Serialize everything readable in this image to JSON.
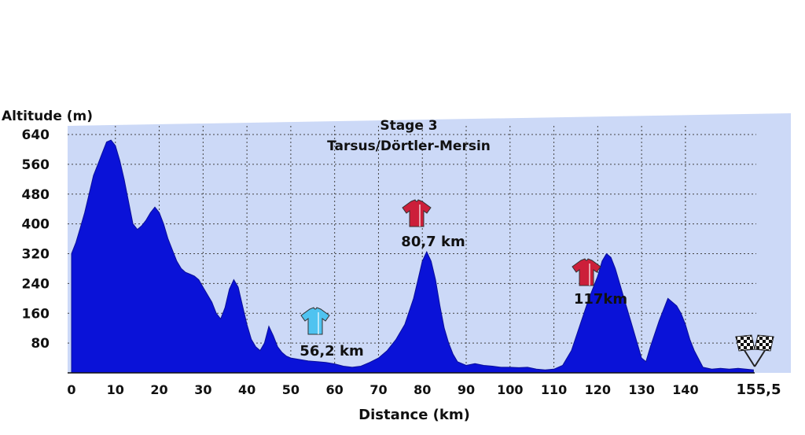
{
  "chart_data": {
    "type": "area",
    "title": "Stage 3",
    "subtitle": "Tarsus/Dörtler-Mersin",
    "ylabel": "Altitude (m)",
    "xlabel": "Distance (km)",
    "ylim": [
      0,
      640
    ],
    "xlim": [
      0,
      155.5
    ],
    "y_ticks": [
      "640",
      "560",
      "480",
      "400",
      "320",
      "240",
      "160",
      "80"
    ],
    "y_tick_values": [
      640,
      560,
      480,
      400,
      320,
      240,
      160,
      80
    ],
    "x_ticks": [
      "0",
      "10",
      "20",
      "30",
      "40",
      "50",
      "60",
      "70",
      "80",
      "90",
      "100",
      "110",
      "120",
      "130",
      "140"
    ],
    "x_tick_values": [
      0,
      10,
      20,
      30,
      40,
      50,
      60,
      70,
      80,
      90,
      100,
      110,
      120,
      130,
      140
    ],
    "x_end_label": "155,5",
    "x_end_value": 155.5,
    "grid": true,
    "colors": {
      "fill": "#0a12d8",
      "plot_bg": "#ccd9f7",
      "gridline": "#444444",
      "jersey_red": "#cc1f3a",
      "jersey_cyan": "#4fc3f0"
    },
    "x": [
      0,
      1,
      2,
      3,
      4,
      5,
      6,
      7,
      8,
      9,
      10,
      11,
      12,
      13,
      14,
      15,
      16,
      17,
      18,
      19,
      20,
      21,
      22,
      23,
      24,
      25,
      26,
      27,
      28,
      29,
      30,
      31,
      32,
      33,
      34,
      35,
      36,
      37,
      38,
      39,
      40,
      41,
      42,
      43,
      44,
      45,
      46,
      47,
      48,
      49,
      50,
      52,
      54,
      56,
      58,
      60,
      62,
      64,
      66,
      68,
      70,
      72,
      74,
      76,
      78,
      79,
      80,
      81,
      82,
      83,
      84,
      85,
      86,
      87,
      88,
      90,
      92,
      94,
      96,
      98,
      100,
      102,
      104,
      106,
      108,
      110,
      112,
      114,
      116,
      118,
      120,
      121,
      122,
      123,
      124,
      125,
      126,
      128,
      130,
      131,
      132,
      134,
      136,
      138,
      139,
      140,
      141,
      142,
      144,
      146,
      148,
      150,
      152,
      155.5
    ],
    "y": [
      320,
      350,
      390,
      430,
      480,
      530,
      560,
      590,
      620,
      625,
      610,
      570,
      520,
      460,
      400,
      385,
      395,
      410,
      430,
      445,
      430,
      400,
      360,
      330,
      300,
      280,
      270,
      265,
      260,
      250,
      230,
      210,
      190,
      160,
      145,
      175,
      225,
      250,
      230,
      180,
      130,
      90,
      70,
      60,
      80,
      125,
      100,
      70,
      55,
      45,
      40,
      36,
      32,
      30,
      28,
      24,
      18,
      15,
      18,
      28,
      40,
      60,
      90,
      130,
      200,
      250,
      300,
      325,
      300,
      250,
      180,
      120,
      80,
      50,
      30,
      20,
      25,
      20,
      18,
      15,
      15,
      14,
      15,
      10,
      8,
      10,
      20,
      60,
      130,
      200,
      260,
      300,
      320,
      310,
      280,
      240,
      200,
      120,
      40,
      30,
      70,
      140,
      200,
      180,
      160,
      130,
      90,
      60,
      15,
      10,
      12,
      10,
      12,
      8
    ],
    "annotations": [
      {
        "text": "80,7 km",
        "x": 80.7,
        "y": 325,
        "jersey": "red"
      },
      {
        "text": "56,2 km",
        "x": 56.2,
        "y": 30,
        "jersey": "cyan"
      },
      {
        "text": "117km",
        "x": 117,
        "y": 300,
        "jersey": "red"
      }
    ]
  }
}
